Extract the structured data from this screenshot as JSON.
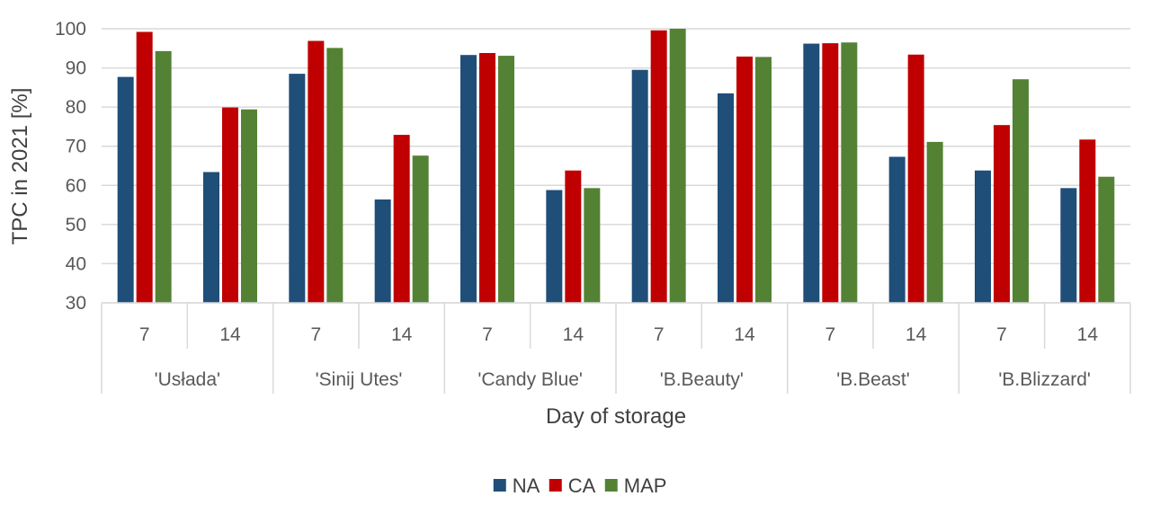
{
  "chart_data": {
    "type": "bar",
    "title": "",
    "xlabel": "Day of storage",
    "ylabel": "TPC in 2021 [%]",
    "ylim": [
      30,
      100
    ],
    "yticks": [
      30,
      40,
      50,
      60,
      70,
      80,
      90,
      100
    ],
    "grid": true,
    "legend_position": "bottom-center",
    "groups": [
      "'Usłada'",
      "'Sinij Utes'",
      "'Candy Blue'",
      "'B.Beauty'",
      "'B.Beast'",
      "'B.Blizzard'"
    ],
    "days": [
      "7",
      "14"
    ],
    "categories": [
      "'Usłada' 7",
      "'Usłada' 14",
      "'Sinij Utes' 7",
      "'Sinij Utes' 14",
      "'Candy Blue' 7",
      "'Candy Blue' 14",
      "'B.Beauty' 7",
      "'B.Beauty' 14",
      "'B.Beast' 7",
      "'B.Beast' 14",
      "'B.Blizzard' 7",
      "'B.Blizzard' 14"
    ],
    "series": [
      {
        "name": "NA",
        "color": "#1f4e79",
        "values": [
          87.7,
          63.4,
          88.5,
          56.4,
          93.3,
          58.8,
          89.5,
          83.5,
          96.2,
          67.3,
          63.8,
          59.3
        ]
      },
      {
        "name": "CA",
        "color": "#c00000",
        "values": [
          99.2,
          79.9,
          96.9,
          72.9,
          93.8,
          63.8,
          99.6,
          92.9,
          96.3,
          93.4,
          75.4,
          71.7
        ]
      },
      {
        "name": "MAP",
        "color": "#548235",
        "values": [
          94.3,
          79.4,
          95.1,
          67.6,
          93.1,
          59.3,
          100.0,
          92.8,
          96.5,
          71.1,
          87.1,
          62.2
        ]
      }
    ]
  }
}
